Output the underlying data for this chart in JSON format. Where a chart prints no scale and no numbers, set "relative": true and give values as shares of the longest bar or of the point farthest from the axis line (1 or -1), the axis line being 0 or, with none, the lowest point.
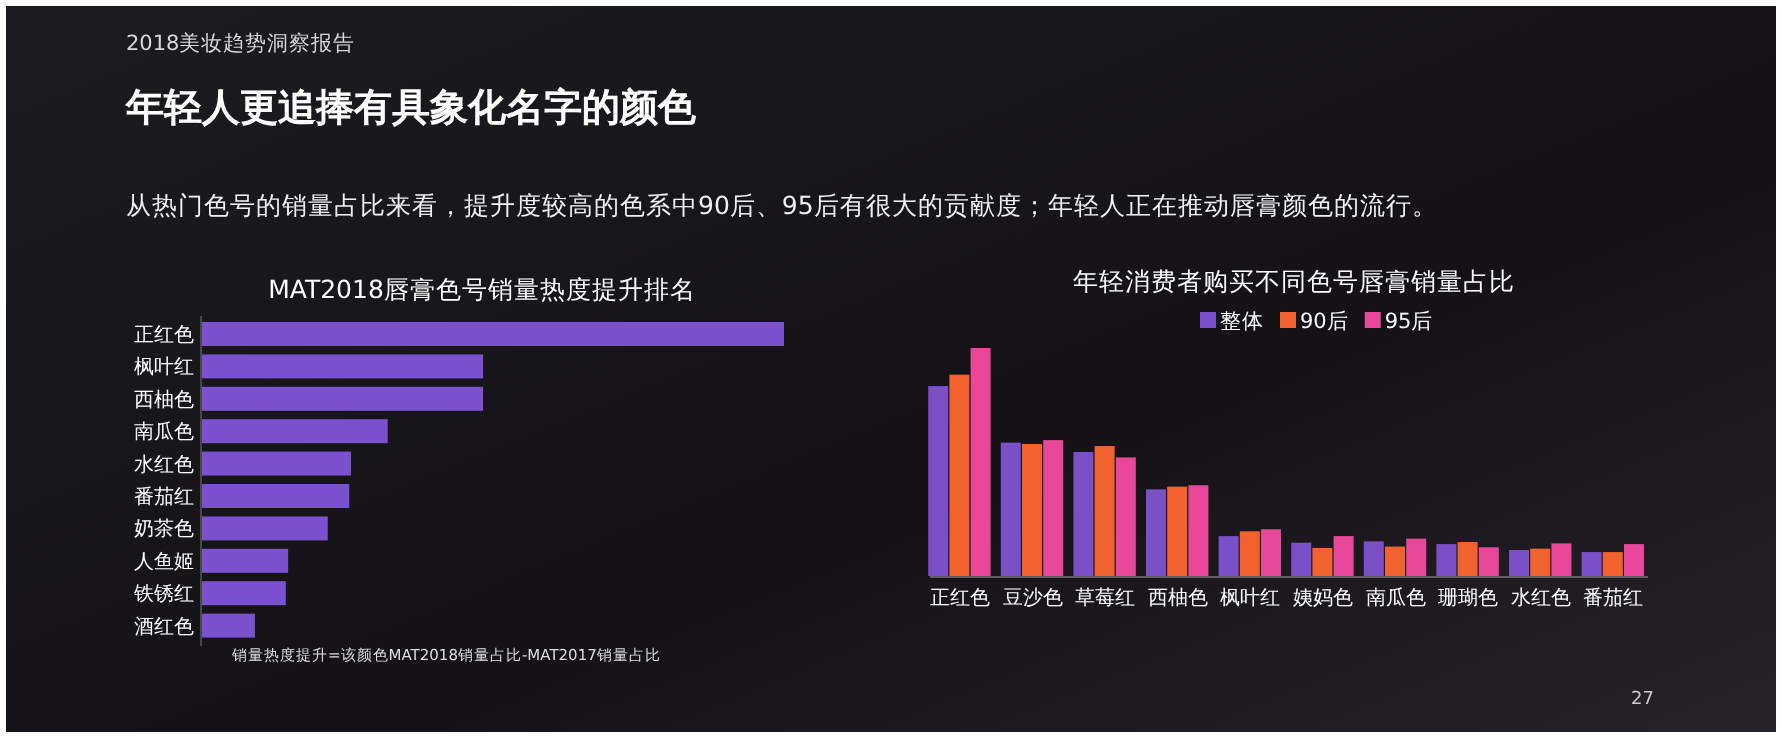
{
  "chart_data": [
    {
      "type": "other",
      "title": "年轻人更追捧有具象化名字的颜色",
      "subtitle": "从热门色号的销量占比来看，提升度较高的色系中90后、95后有很大的贡献度；年轻人正在推动唇膏颜色的流行。",
      "annotations": [
        "2018美妆趋势洞察报告",
        "27"
      ]
    },
    {
      "type": "bar",
      "orientation": "horizontal",
      "relative": true,
      "title": "MAT2018唇膏色号销量热度提升排名",
      "categories": [
        "正红色",
        "枫叶红",
        "西柚色",
        "南瓜色",
        "水红色",
        "番茄红",
        "奶茶色",
        "人鱼姬",
        "铁锈红",
        "酒红色"
      ],
      "values": [
        1,
        0.483,
        0.483,
        0.319,
        0.256,
        0.253,
        0.216,
        0.148,
        0.144,
        0.091
      ],
      "color": "#7a52d0",
      "annotations": [
        "销量热度提升=该颜色MAT2018销量占比-MAT2017销量占比"
      ]
    },
    {
      "type": "bar",
      "relative": true,
      "title": "年轻消费者购买不同色号唇膏销量占比",
      "legend": "top",
      "categories": [
        "正红色",
        "豆沙色",
        "草莓红",
        "西柚色",
        "枫叶红",
        "姨妈色",
        "南瓜色",
        "珊瑚色",
        "水红色",
        "番茄红"
      ],
      "series": [
        {
          "name": "整体",
          "color": "#7b4fc8",
          "values": [
            0.833,
            0.585,
            0.544,
            0.38,
            0.175,
            0.146,
            0.152,
            0.14,
            0.114,
            0.105
          ]
        },
        {
          "name": "90后",
          "color": "#f2622e",
          "values": [
            0.883,
            0.579,
            0.57,
            0.392,
            0.196,
            0.123,
            0.129,
            0.149,
            0.12,
            0.105
          ]
        },
        {
          "name": "95后",
          "color": "#e8479a",
          "values": [
            1,
            0.596,
            0.52,
            0.398,
            0.205,
            0.175,
            0.164,
            0.126,
            0.143,
            0.14
          ]
        }
      ]
    }
  ]
}
